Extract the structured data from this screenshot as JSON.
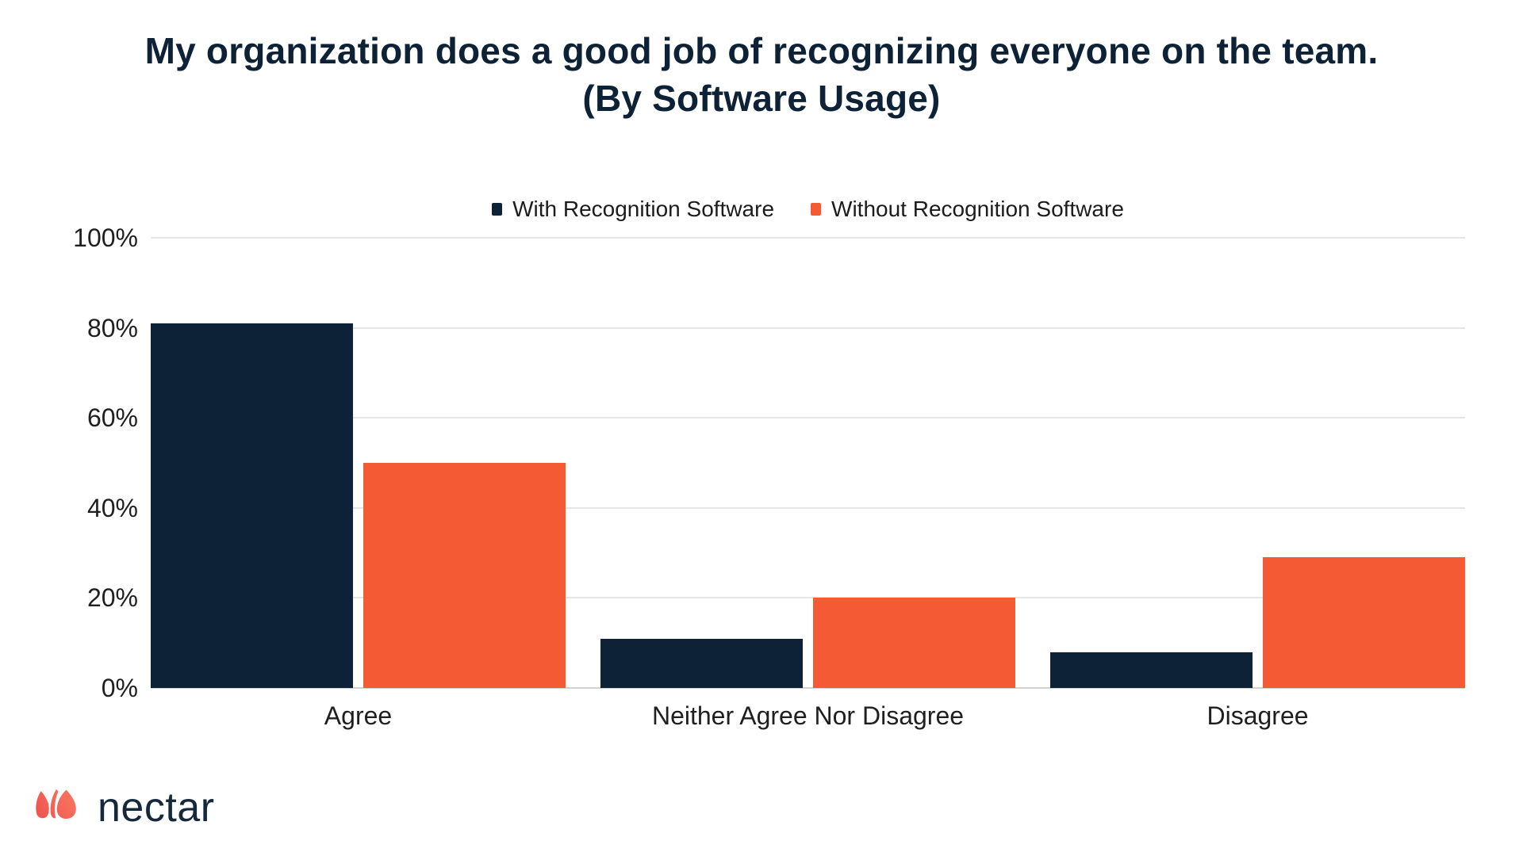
{
  "title": {
    "line1": "My organization does a good job of recognizing everyone on the team.",
    "line2": "(By Software Usage)"
  },
  "legend": [
    {
      "label": "With Recognition Software",
      "color": "#0d2236"
    },
    {
      "label": "Without Recognition Software",
      "color": "#f45b35"
    }
  ],
  "chart_data": {
    "type": "bar",
    "title": "My organization does a good job of recognizing everyone on the team. (By Software Usage)",
    "categories": [
      "Agree",
      "Neither Agree Nor Disagree",
      "Disagree"
    ],
    "series": [
      {
        "name": "With Recognition Software",
        "color": "#0d2236",
        "values": [
          81,
          11,
          8
        ]
      },
      {
        "name": "Without Recognition Software",
        "color": "#f45b35",
        "values": [
          50,
          20,
          29
        ]
      }
    ],
    "xlabel": "",
    "ylabel": "",
    "ylim": [
      0,
      100
    ],
    "yticks": [
      "0%",
      "20%",
      "40%",
      "60%",
      "80%",
      "100%"
    ],
    "grid": true,
    "legend_position": "top"
  },
  "colors": {
    "navy": "#0d2236",
    "orange": "#f45b35",
    "title_text": "#0d2236",
    "axis_text": "#1f1f1f",
    "legend_text": "#1c1c1c",
    "gridline": "#e5e5e5",
    "baseline": "#d2d2d2",
    "background": "#ffffff",
    "logo_coral_dark": "#ee4f4f",
    "logo_coral_light": "#f97c61",
    "logo_text": "#16293b"
  },
  "logo": {
    "text": "nectar",
    "icon": "nectar-flower-icon"
  }
}
